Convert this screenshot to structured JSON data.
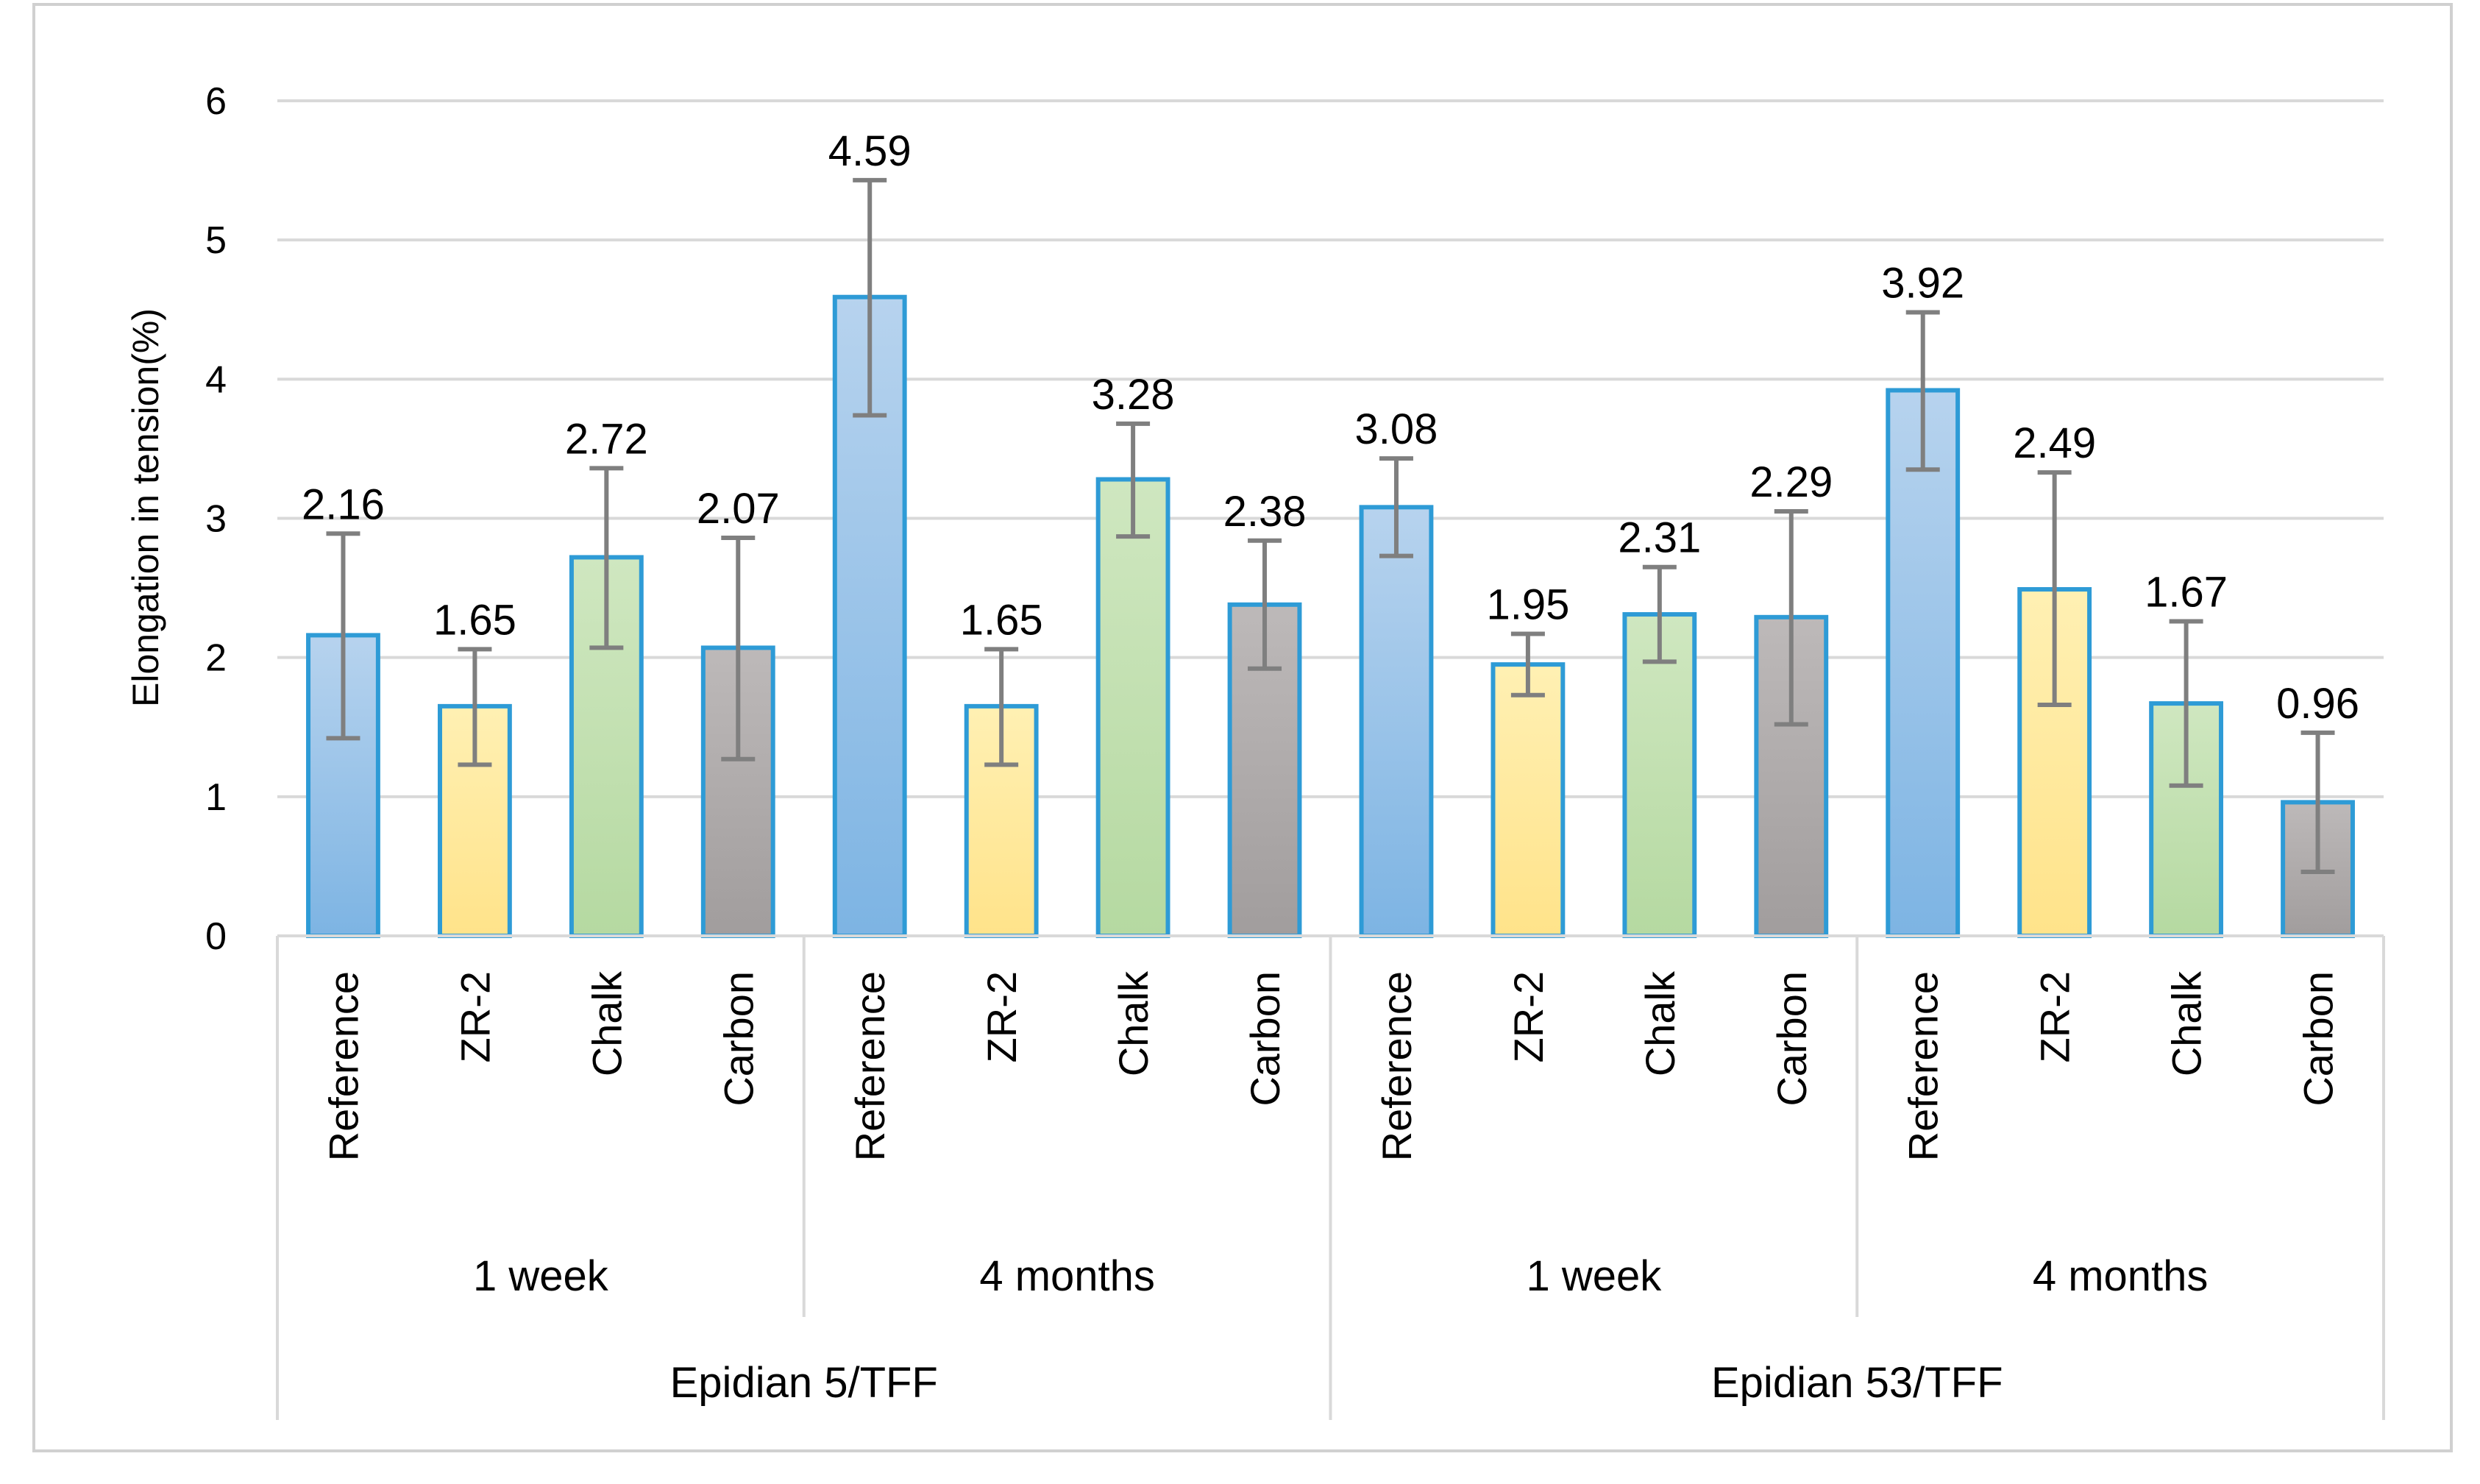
{
  "chart_data": {
    "type": "bar",
    "title": "",
    "ylabel": "Elongation in tension(%)",
    "xlabel": "",
    "ylim": [
      0,
      6
    ],
    "yticks": [
      0,
      1,
      2,
      3,
      4,
      5,
      6
    ],
    "grid": true,
    "categories": [
      "Reference",
      "ZR-2",
      "Chalk",
      "Carbon"
    ],
    "groups": [
      {
        "name": "Epidian 5/TFF",
        "subgroups": [
          {
            "name": "1 week",
            "values": [
              2.16,
              1.65,
              2.72,
              2.07
            ],
            "err_low": [
              1.42,
              1.23,
              2.07,
              1.27
            ],
            "err_high": [
              2.89,
              2.06,
              3.36,
              2.86
            ]
          },
          {
            "name": "4 months",
            "values": [
              4.59,
              1.65,
              3.28,
              2.38
            ],
            "err_low": [
              3.74,
              1.23,
              2.87,
              1.92
            ],
            "err_high": [
              5.43,
              2.06,
              3.68,
              2.84
            ]
          }
        ]
      },
      {
        "name": "Epidian 53/TFF",
        "subgroups": [
          {
            "name": "1 week",
            "values": [
              3.08,
              1.95,
              2.31,
              2.29
            ],
            "err_low": [
              2.73,
              1.73,
              1.97,
              1.52
            ],
            "err_high": [
              3.43,
              2.17,
              2.65,
              3.05
            ]
          },
          {
            "name": "4 months",
            "values": [
              3.92,
              2.49,
              1.67,
              0.96
            ],
            "err_low": [
              3.35,
              1.66,
              1.08,
              0.46
            ],
            "err_high": [
              4.48,
              3.33,
              2.26,
              1.46
            ]
          }
        ]
      }
    ],
    "colors": {
      "Reference": "#9dc3e6",
      "ZR-2": "#ffe699",
      "Chalk": "#c5e0b4",
      "Carbon": "#aeaaaa",
      "bar_outline": "#2e9bd6",
      "error_bar": "#7f7f7f",
      "grid": "#d9d9d9",
      "frame": "#d0d0d0"
    }
  }
}
